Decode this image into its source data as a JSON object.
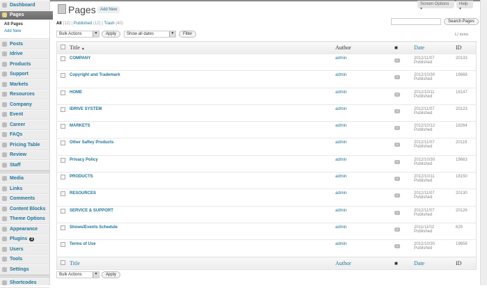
{
  "sidebar": {
    "items": [
      {
        "label": "Dashboard",
        "icon": "dashboard-icon"
      },
      {
        "label": "Pages",
        "icon": "pages-icon",
        "current": true,
        "sub": [
          "All Pages",
          "Add New"
        ]
      },
      {
        "label": "Posts",
        "icon": "pin-icon"
      },
      {
        "label": "Idrive",
        "icon": "circle-icon"
      },
      {
        "label": "Products",
        "icon": "circle-icon"
      },
      {
        "label": "Support",
        "icon": "circle-icon"
      },
      {
        "label": "Markets",
        "icon": "circle-icon"
      },
      {
        "label": "Resources",
        "icon": "circle-icon"
      },
      {
        "label": "Company",
        "icon": "circle-icon"
      },
      {
        "label": "Event",
        "icon": "circle-icon"
      },
      {
        "label": "Career",
        "icon": "blocks-icon"
      },
      {
        "label": "FAQs",
        "icon": "blocks-icon"
      },
      {
        "label": "Pricing Table",
        "icon": "blocks-icon"
      },
      {
        "label": "Review",
        "icon": "blocks-icon"
      },
      {
        "label": "Staff",
        "icon": "blocks-icon"
      },
      {
        "label": "Media",
        "icon": "media-icon"
      },
      {
        "label": "Links",
        "icon": "link-icon"
      },
      {
        "label": "Comments",
        "icon": "comment-icon"
      },
      {
        "label": "Content Blocks",
        "icon": "content-blocks-icon"
      },
      {
        "label": "Theme Options",
        "icon": "theme-options-icon"
      },
      {
        "label": "Appearance",
        "icon": "appearance-icon"
      },
      {
        "label": "Plugins",
        "icon": "plugin-icon",
        "badge": "3"
      },
      {
        "label": "Users",
        "icon": "users-icon"
      },
      {
        "label": "Tools",
        "icon": "tools-icon"
      },
      {
        "label": "Settings",
        "icon": "settings-icon"
      },
      {
        "label": "Shortcodes",
        "icon": "shortcodes-icon"
      }
    ]
  },
  "header": {
    "title": "Pages",
    "add_new": "Add New",
    "screen_options": "Screen Options ▾",
    "help": "Help ▾"
  },
  "views": {
    "all": "All",
    "all_count": "(12)",
    "published": "Published",
    "published_count": "(12)",
    "trash": "Trash",
    "trash_count": "(40)"
  },
  "controls": {
    "bulk_actions": "Bulk Actions",
    "apply": "Apply",
    "dates": "Show all dates",
    "filter": "Filter",
    "search_button": "Search Pages",
    "search_value": "",
    "items_count": "12 items"
  },
  "table": {
    "headers": {
      "title": "Title",
      "title_sort": "▲",
      "author": "Author",
      "date": "Date",
      "id": "ID"
    },
    "rows": [
      {
        "title": "COMPANY",
        "author": "admin",
        "comments": "0",
        "date": "2012/11/07",
        "status": "Published",
        "id": "20133"
      },
      {
        "title": "Copyright and Trademark",
        "author": "admin",
        "comments": "0",
        "date": "2012/10/30",
        "status": "Published",
        "id": "19668"
      },
      {
        "title": "HOME",
        "author": "admin",
        "comments": "0",
        "date": "2012/10/11",
        "status": "Published",
        "id": "18147"
      },
      {
        "title": "IDRIVE SYSTEM",
        "author": "admin",
        "comments": "0",
        "date": "2012/11/07",
        "status": "Published",
        "id": "20123"
      },
      {
        "title": "MARKETS",
        "author": "admin",
        "comments": "0",
        "date": "2012/10/12",
        "status": "Published",
        "id": "18264"
      },
      {
        "title": "Other Saftey Products",
        "author": "admin",
        "comments": "0",
        "date": "2012/11/07",
        "status": "Published",
        "id": "20119"
      },
      {
        "title": "Privacy Policy",
        "author": "admin",
        "comments": "0",
        "date": "2012/10/30",
        "status": "Published",
        "id": "19663"
      },
      {
        "title": "PRODUCTS",
        "author": "admin",
        "comments": "0",
        "date": "2012/10/11",
        "status": "Published",
        "id": "18150"
      },
      {
        "title": "RESOURCES",
        "author": "admin",
        "comments": "0",
        "date": "2012/11/07",
        "status": "Published",
        "id": "20130"
      },
      {
        "title": "SERVICE & SUPPORT",
        "author": "admin",
        "comments": "0",
        "date": "2012/11/07",
        "status": "Published",
        "id": "20126"
      },
      {
        "title": "Shows/Events Schedule",
        "author": "admin",
        "comments": "0",
        "date": "2011/11/02",
        "status": "Published",
        "id": "629"
      },
      {
        "title": "Terms of Use",
        "author": "admin",
        "comments": "0",
        "date": "2012/10/30",
        "status": "Published",
        "id": "19658"
      }
    ]
  }
}
